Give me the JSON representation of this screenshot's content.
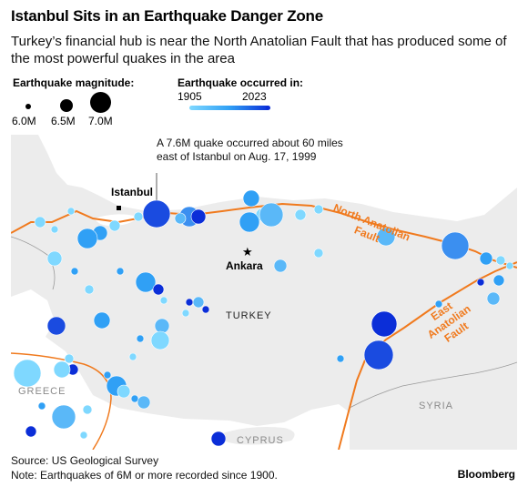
{
  "header": {
    "title": "Istanbul Sits in an Earthquake Danger Zone",
    "subtitle": "Turkey’s financial hub is near the North Anatolian Fault that has produced some of the most powerful quakes in the area"
  },
  "legend": {
    "magnitude_title": "Earthquake magnitude:",
    "magnitudes": [
      "6.0M",
      "6.5M",
      "7.0M"
    ],
    "year_title": "Earthquake occurred in:",
    "year_start": "1905",
    "year_end": "2023",
    "colors": {
      "early": "#7fd8ff",
      "late": "#0b2ed8"
    }
  },
  "map": {
    "labels": {
      "istanbul": "Istanbul",
      "ankara": "Ankara",
      "turkey": "TURKEY",
      "greece": "GREECE",
      "syria": "SYRIA",
      "cyprus": "CYPRUS",
      "naf": "North Anatolian Fault",
      "eaf": "East Anatolian Fault"
    },
    "annotation": "A 7.6M quake occurred about 60 miles east of Istanbul on Aug. 17, 1999",
    "colors": {
      "land": "#ececec",
      "sea": "#ffffff",
      "fault": "#f07a1e"
    }
  },
  "footer": {
    "source": "Source: US Geological Survey",
    "note": "Note: Earthquakes of 6M or more recorded since 1900.",
    "brand": "Bloomberg"
  }
}
